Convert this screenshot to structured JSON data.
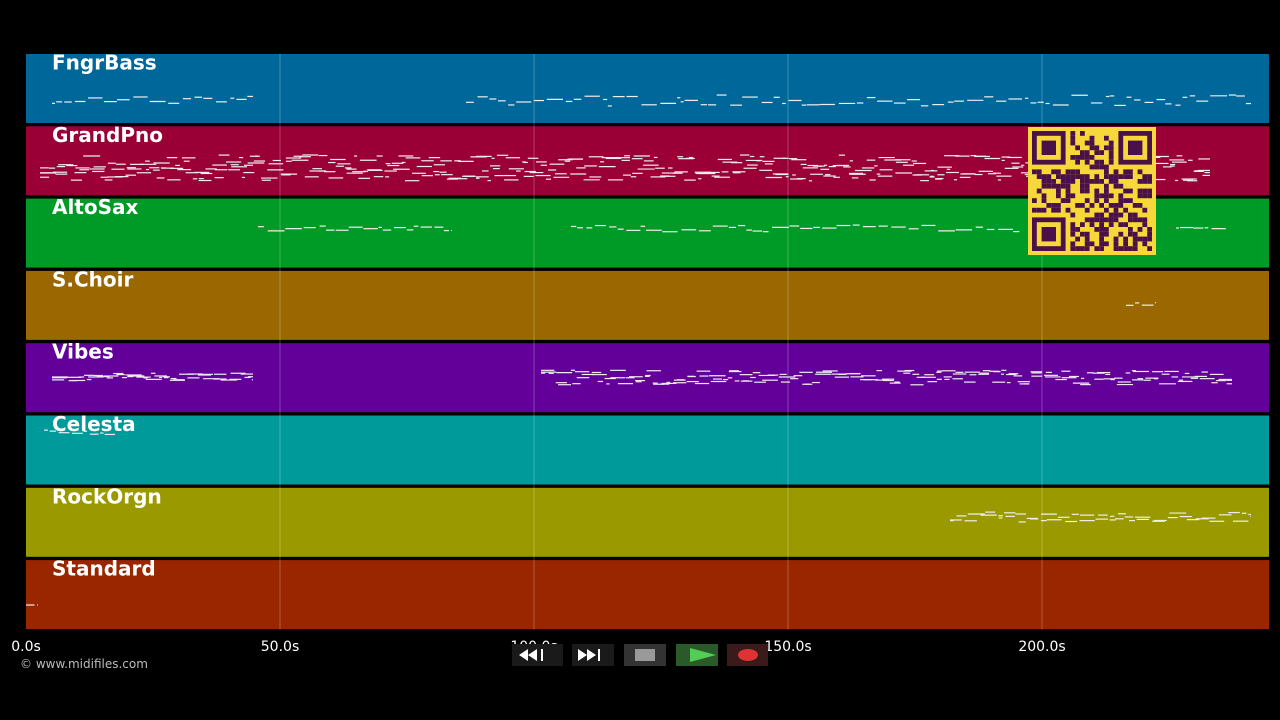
{
  "tracks": [
    {
      "name": "FngrBass",
      "color": "#00679a"
    },
    {
      "name": "GrandPno",
      "color": "#9a0036"
    },
    {
      "name": "AltoSax",
      "color": "#009a26"
    },
    {
      "name": "S.Choir",
      "color": "#9a6700"
    },
    {
      "name": "Vibes",
      "color": "#63009a"
    },
    {
      "name": "Celesta",
      "color": "#009a9a"
    },
    {
      "name": "RockOrgn",
      "color": "#9a9a00"
    },
    {
      "name": "Standard",
      "color": "#9a2600"
    }
  ],
  "time_axis": {
    "labels": [
      "0.0s",
      "50.0s",
      "100.0s",
      "150.0s",
      "200.0s"
    ]
  },
  "footer": {
    "copyright": "© www.midifiles.com"
  }
}
